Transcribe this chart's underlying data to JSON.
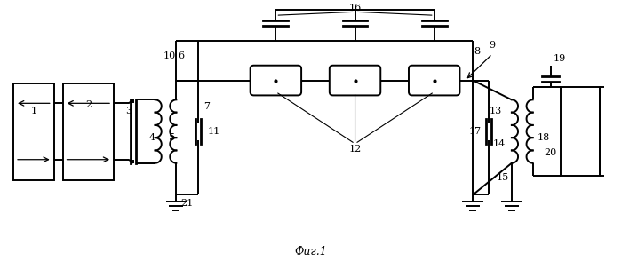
{
  "title": "Фиг.1",
  "bg_color": "#ffffff",
  "lw": 1.4,
  "figsize": [
    7.0,
    3.03
  ],
  "dpi": 100
}
